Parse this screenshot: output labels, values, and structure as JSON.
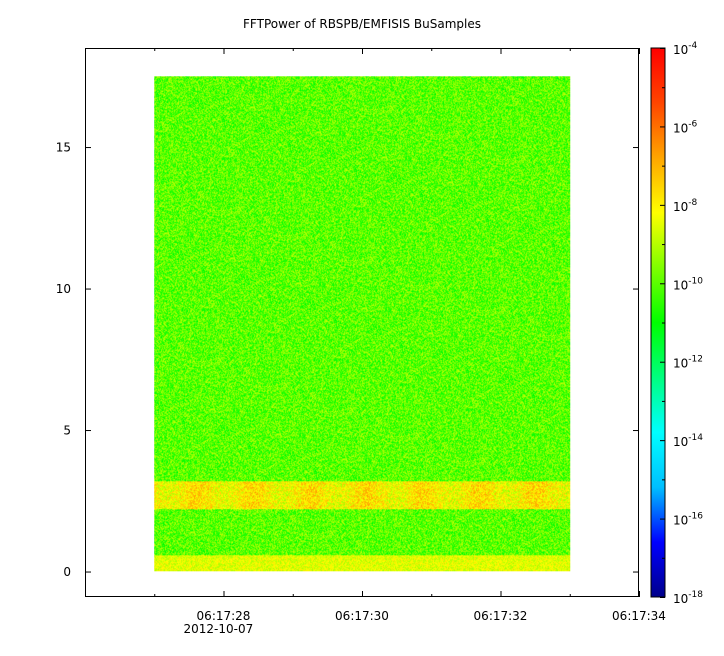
{
  "chart_data": {
    "type": "heatmap",
    "title": "FFTPower of RBSPB/EMFISIS  BuSamples",
    "xlabel": "",
    "ylabel": "",
    "x_ticks": [
      "06:17:28",
      "06:17:30",
      "06:17:32",
      "06:17:34"
    ],
    "x_tick_secondary": "2012-10-07",
    "x_range_seconds": [
      6.0,
      14.0
    ],
    "data_x_range_seconds": [
      7.0,
      13.0
    ],
    "y_ticks": [
      0,
      5,
      10,
      15
    ],
    "ylim": [
      -0.9,
      18.5
    ],
    "data_y_range": [
      0,
      17.5
    ],
    "colorbar": {
      "scale": "log",
      "range": [
        1e-18,
        0.0001
      ],
      "tick_exponents": [
        -4,
        -6,
        -8,
        -10,
        -12,
        -14,
        -16,
        -18
      ],
      "tick_base": "10",
      "colormap": "rainbow",
      "colors": [
        "#00008b",
        "#0000ff",
        "#00bfff",
        "#00ffff",
        "#00ff7f",
        "#00ff00",
        "#7fff00",
        "#ffff00",
        "#ffa500",
        "#ff4500",
        "#ff0000"
      ]
    },
    "features": [
      {
        "description": "background power",
        "log10_power": -10
      },
      {
        "description": "enhanced band near 2.5-3",
        "y_range": [
          2.2,
          3.2
        ],
        "log10_power": -8
      },
      {
        "description": "low-frequency band near 0-0.6",
        "y_range": [
          0,
          0.6
        ],
        "log10_power": -8.5
      }
    ]
  }
}
